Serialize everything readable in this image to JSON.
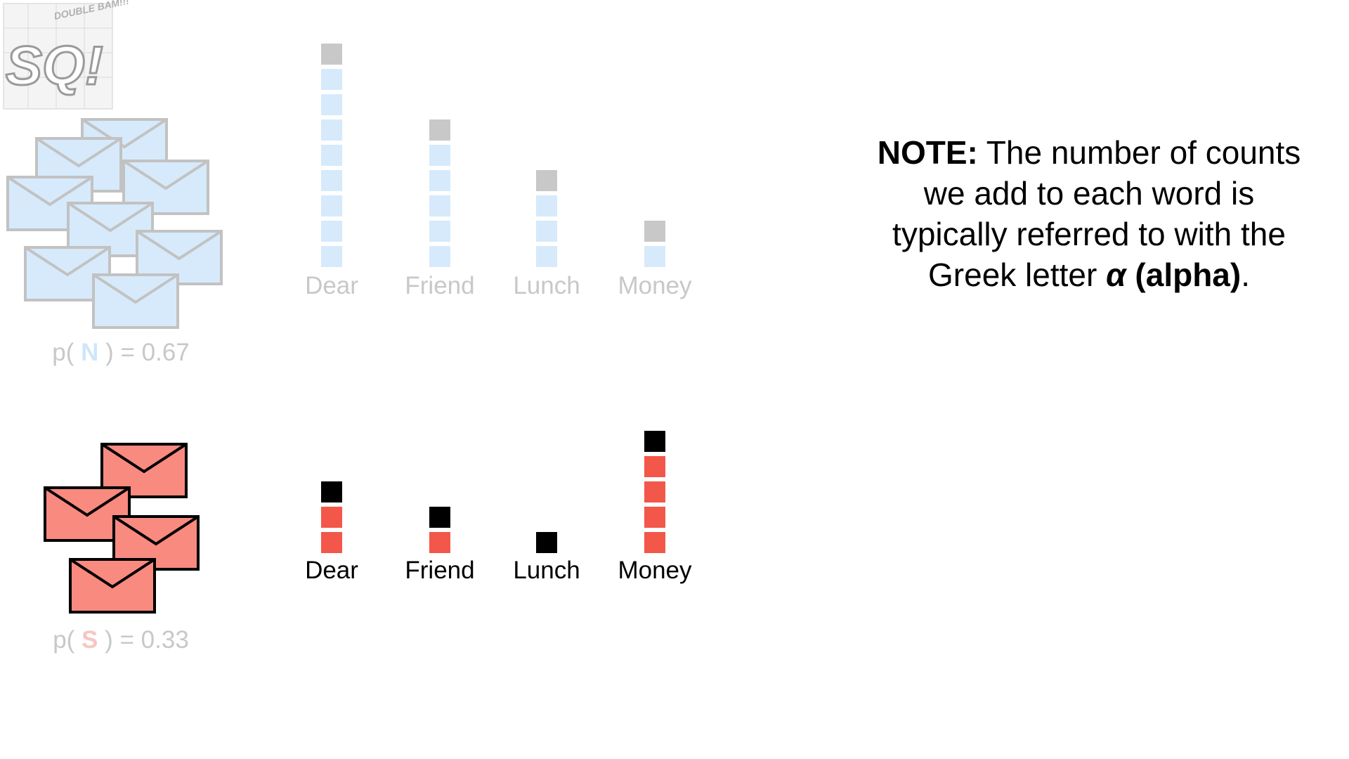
{
  "logo": {
    "main": "SQ!",
    "tagline": "DOUBLE BAM!!!"
  },
  "normal": {
    "label": "N",
    "prob_prefix": "p( ",
    "prob_suffix": " ) = 0.67",
    "probability": 0.67,
    "words": [
      {
        "word": "Dear",
        "count": 8,
        "alpha": 1
      },
      {
        "word": "Friend",
        "count": 5,
        "alpha": 1
      },
      {
        "word": "Lunch",
        "count": 3,
        "alpha": 1
      },
      {
        "word": "Money",
        "count": 1,
        "alpha": 1
      }
    ],
    "colors": {
      "count": "#d6eafb",
      "alpha": "#c8c8c8",
      "text": "#c8c8c8",
      "label": "#d6eafb",
      "envelope_fill": "#d6eafb",
      "envelope_stroke": "#c2c2c2"
    }
  },
  "spam": {
    "label": "S",
    "prob_prefix": "p( ",
    "prob_suffix": " ) = 0.33",
    "probability": 0.33,
    "words": [
      {
        "word": "Dear",
        "count": 2,
        "alpha": 1
      },
      {
        "word": "Friend",
        "count": 1,
        "alpha": 1
      },
      {
        "word": "Lunch",
        "count": 0,
        "alpha": 1
      },
      {
        "word": "Money",
        "count": 4,
        "alpha": 1
      }
    ],
    "colors": {
      "count": "#f2574a",
      "alpha": "#000000",
      "text": "#000000",
      "label": "#f7c6c2",
      "envelope_fill": "#f88a80",
      "envelope_stroke": "#000000"
    }
  },
  "note": {
    "bold_lead": "NOTE:",
    "line1": " The number of counts",
    "line2": "we add to each word is",
    "line3": "typically referred to with the",
    "line4": "Greek letter ",
    "alpha_symbol": "α",
    "alpha_word": " (alpha)",
    "end": "."
  }
}
